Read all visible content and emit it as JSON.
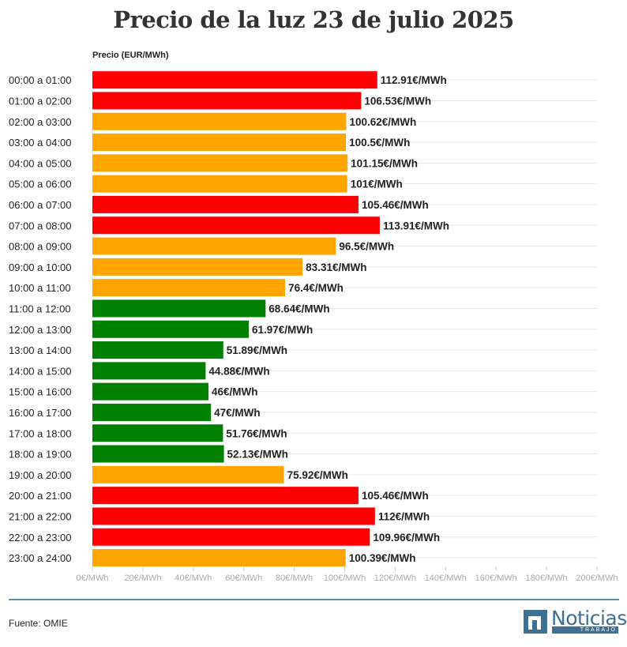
{
  "chart_data": {
    "type": "bar",
    "orientation": "horizontal",
    "title": "Precio de la luz 23 de julio 2025",
    "axis_title": "Precio (EUR/MWh)",
    "xlim": [
      0,
      200
    ],
    "ticks": [
      0,
      20,
      40,
      60,
      80,
      100,
      120,
      140,
      160,
      180,
      200
    ],
    "tick_labels": [
      "0€/MWh",
      "20€/MWh",
      "40€/MWh",
      "60€/MWh",
      "80€/MWh",
      "100€/MWh",
      "120€/MWh",
      "140€/MWh",
      "160€/MWh",
      "180€/MWh",
      "200€/MWh"
    ],
    "categories": [
      "00:00 a 01:00",
      "01:00 a 02:00",
      "02:00 a 03:00",
      "03:00 a 04:00",
      "04:00 a 05:00",
      "05:00 a 06:00",
      "06:00 a 07:00",
      "07:00 a 08:00",
      "08:00 a 09:00",
      "09:00 a 10:00",
      "10:00 a 11:00",
      "11:00 a 12:00",
      "12:00 a 13:00",
      "13:00 a 14:00",
      "14:00 a 15:00",
      "15:00 a 16:00",
      "16:00 a 17:00",
      "17:00 a 18:00",
      "18:00 a 19:00",
      "19:00 a 20:00",
      "20:00 a 21:00",
      "21:00 a 22:00",
      "22:00 a 23:00",
      "23:00 a 24:00"
    ],
    "values": [
      112.91,
      106.53,
      100.62,
      100.5,
      101.15,
      101,
      105.46,
      113.91,
      96.5,
      83.31,
      76.4,
      68.64,
      61.97,
      51.89,
      44.88,
      46,
      47,
      51.76,
      52.13,
      75.92,
      105.46,
      112,
      109.96,
      100.39
    ],
    "value_labels": [
      "112.91€/MWh",
      "106.53€/MWh",
      "100.62€/MWh",
      "100.5€/MWh",
      "101.15€/MWh",
      "101€/MWh",
      "105.46€/MWh",
      "113.91€/MWh",
      "96.5€/MWh",
      "83.31€/MWh",
      "76.4€/MWh",
      "68.64€/MWh",
      "61.97€/MWh",
      "51.89€/MWh",
      "44.88€/MWh",
      "46€/MWh",
      "47€/MWh",
      "51.76€/MWh",
      "52.13€/MWh",
      "75.92€/MWh",
      "105.46€/MWh",
      "112€/MWh",
      "109.96€/MWh",
      "100.39€/MWh"
    ],
    "bar_colors": [
      "#ff0000",
      "#ff0000",
      "#ffa500",
      "#ffa500",
      "#ffa500",
      "#ffa500",
      "#ff0000",
      "#ff0000",
      "#ffa500",
      "#ffa500",
      "#ffa500",
      "#008000",
      "#008000",
      "#008000",
      "#008000",
      "#008000",
      "#008000",
      "#008000",
      "#008000",
      "#ffa500",
      "#ff0000",
      "#ff0000",
      "#ff0000",
      "#ffa500"
    ],
    "grid": true
  },
  "footer": {
    "source": "Fuente: OMIE",
    "logo_word": "Noticias",
    "logo_sub": "TRABAJO",
    "logo_color": "#3e6f95"
  }
}
